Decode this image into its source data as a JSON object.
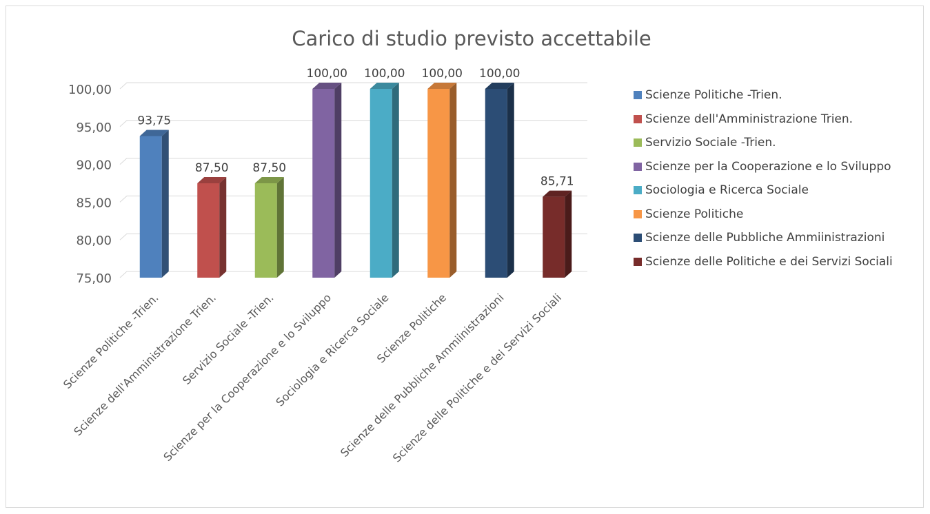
{
  "chart_data": {
    "type": "bar",
    "title": "Carico di studio previsto accettabile",
    "categories": [
      "Scienze Politiche -Trien.",
      "Scienze dell'Amministrazione Trien.",
      "Servizio Sociale -Trien.",
      "Scienze per la Cooperazione e lo Sviluppo",
      "Sociologia e Ricerca Sociale",
      "Scienze Politiche",
      "Scienze delle Pubbliche Ammiinistrazioni",
      "Scienze delle Politiche e dei Servizi Sociali"
    ],
    "values": [
      93.75,
      87.5,
      87.5,
      100.0,
      100.0,
      100.0,
      100.0,
      85.71
    ],
    "value_labels": [
      "93,75",
      "87,50",
      "87,50",
      "100,00",
      "100,00",
      "100,00",
      "100,00",
      "85,71"
    ],
    "colors": [
      "#4f81bd",
      "#c0504d",
      "#9bbb59",
      "#8064a2",
      "#4bacc6",
      "#f79646",
      "#2c4d75",
      "#772c2a"
    ],
    "ylim": [
      75,
      100
    ],
    "yticks": [
      75,
      80,
      85,
      90,
      95,
      100
    ],
    "ytick_labels": [
      "75,00",
      "80,00",
      "85,00",
      "90,00",
      "95,00",
      "100,00"
    ],
    "xlabel": "",
    "ylabel": "",
    "grid": true,
    "legend_position": "right",
    "style": "3d-column"
  }
}
